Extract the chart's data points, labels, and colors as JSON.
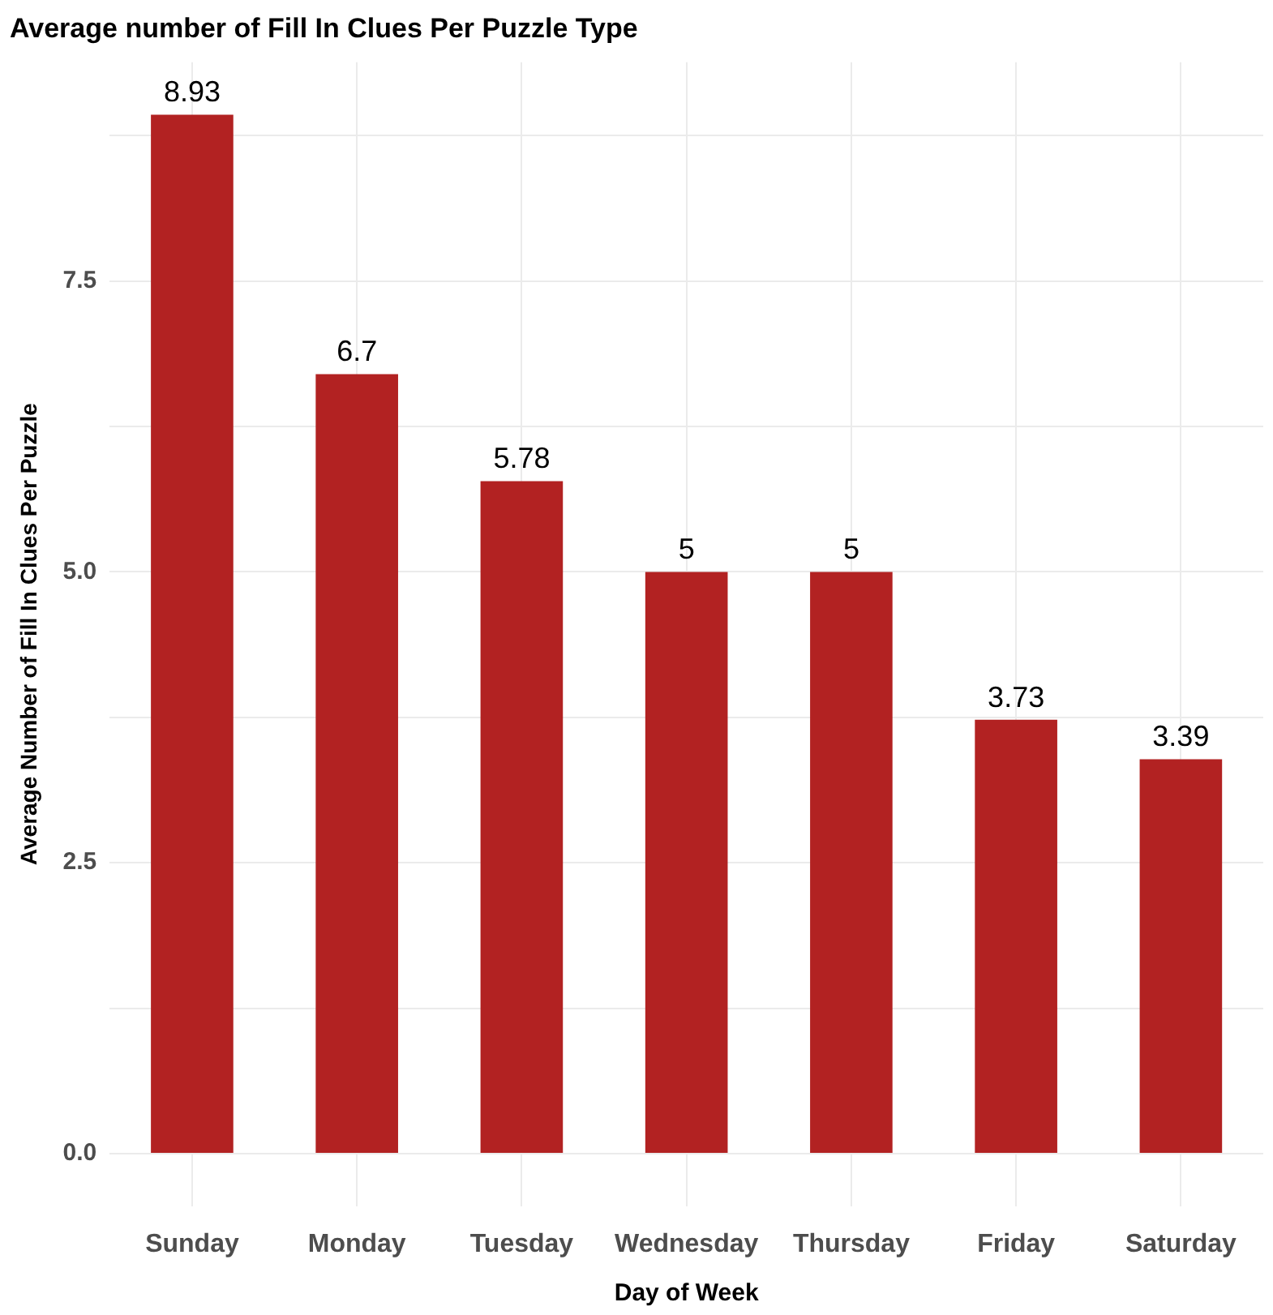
{
  "chart_data": {
    "type": "bar",
    "title": "Average number of Fill In Clues Per Puzzle Type",
    "xlabel": "Day of Week",
    "ylabel": "Average Number of Fill In Clues Per Puzzle",
    "categories": [
      "Sunday",
      "Monday",
      "Tuesday",
      "Wednesday",
      "Thursday",
      "Friday",
      "Saturday"
    ],
    "values": [
      8.93,
      6.7,
      5.78,
      5,
      5,
      3.73,
      3.39
    ],
    "color": "#b22222",
    "ylim": [
      -0.45,
      9.38
    ],
    "yticks": [
      {
        "value": 0,
        "label": "0.0"
      },
      {
        "value": 1.25,
        "label": null
      },
      {
        "value": 2.5,
        "label": "2.5"
      },
      {
        "value": 3.75,
        "label": null
      },
      {
        "value": 5,
        "label": "5.0"
      },
      {
        "value": 6.25,
        "label": null
      },
      {
        "value": 7.5,
        "label": "7.5"
      },
      {
        "value": 8.75,
        "label": null
      }
    ],
    "grid": true,
    "data_labels": true
  }
}
